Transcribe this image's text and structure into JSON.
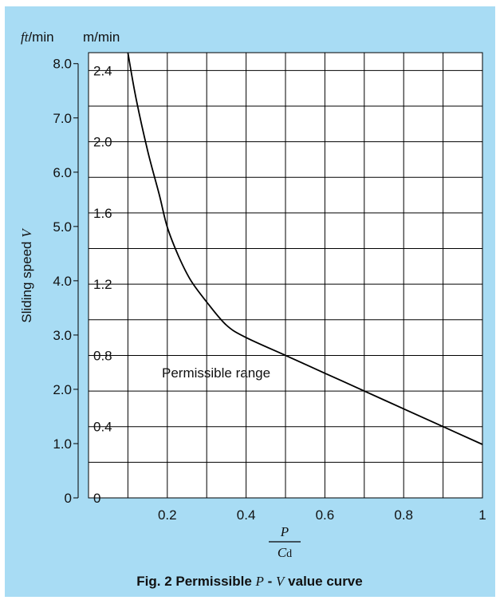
{
  "chart_data": {
    "type": "line",
    "title": "",
    "caption": {
      "prefix": "Fig. 2  Permissible ",
      "var_p": "P",
      "dash": " - ",
      "var_v": "V",
      "suffix": " value curve"
    },
    "ylabel": {
      "text": "Sliding speed ",
      "var": "V"
    },
    "xlabel": {
      "numerator": "P",
      "denominator_var": "C",
      "denominator_sub": "d"
    },
    "unit_ft": {
      "var": "ft",
      "unit": "/min"
    },
    "unit_m": "m/min",
    "annotation": "Permissible range",
    "xlim": [
      0,
      1
    ],
    "ylim": [
      0,
      2.5
    ],
    "x_ticks": [
      "0.2",
      "0.4",
      "0.6",
      "0.8",
      "1"
    ],
    "x_tick_values": [
      0.2,
      0.4,
      0.6,
      0.8,
      1.0
    ],
    "y_ticks_m": [
      "0",
      "0.4",
      "0.8",
      "1.2",
      "1.6",
      "2.0",
      "2.4"
    ],
    "y_tick_values_m": [
      0,
      0.4,
      0.8,
      1.2,
      1.6,
      2.0,
      2.4
    ],
    "y_ticks_ft": [
      "0",
      "1.0",
      "2.0",
      "3.0",
      "4.0",
      "5.0",
      "6.0",
      "7.0",
      "8.0"
    ],
    "y_tick_values_ft": [
      0,
      1,
      2,
      3,
      4,
      5,
      6,
      7,
      8
    ],
    "grid": true,
    "series": [
      {
        "x": [
          0.1,
          0.12,
          0.15,
          0.18,
          0.2,
          0.23,
          0.26,
          0.3,
          0.35,
          0.4,
          0.5,
          0.6,
          0.7,
          0.8,
          0.9,
          1.0
        ],
        "y": [
          2.5,
          2.25,
          1.95,
          1.7,
          1.52,
          1.35,
          1.22,
          1.1,
          0.97,
          0.9,
          0.8,
          0.7,
          0.6,
          0.5,
          0.4,
          0.3
        ]
      }
    ],
    "colors": {
      "background": "#a8dcf4",
      "plot": "#ffffff",
      "line": "#000000"
    }
  }
}
